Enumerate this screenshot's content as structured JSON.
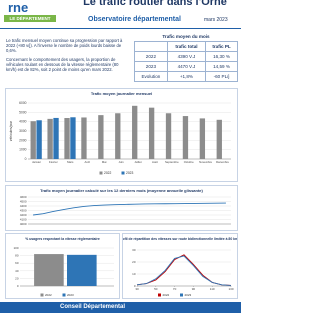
{
  "header": {
    "title": "Le trafic routier dans l'Orne",
    "logo": "rne",
    "logo_sub": "LE DÉPARTEMENT",
    "subtitle": "Observatoire départemental",
    "date": "mars 2023"
  },
  "text": [
    "Le trafic mensuel moyen continue sa progression par rapport à 2022 (+80 v/j). A l'inverse le nombre de poids lourds baisse de 0,6%.",
    "Concernant le comportement des usagers, la proportion de véhicules roulant en dessous de la vitesse réglementaire (80 km/h) est de 82%, soit 2 point de moins qu'en mars 2022."
  ],
  "table": {
    "title": "Trafic moyen du mois",
    "header": [
      "trafic total",
      "trafic PL"
    ],
    "rows": [
      [
        "2022",
        "4390 V.J",
        "16,30 %"
      ],
      [
        "2023",
        "4470 V.J",
        "14,59 %"
      ],
      [
        "Evolution",
        "+1,8%",
        "-60 PL/j"
      ]
    ]
  },
  "chart_data": [
    {
      "type": "bar",
      "title": "Trafic moyen journalier mensuel",
      "y_label": "véhicules/jour",
      "categories": [
        "Janvier",
        "Février",
        "Mars",
        "Avril",
        "Mai",
        "Juin",
        "Juillet",
        "Août",
        "Septembre",
        "Octobre",
        "Novembre",
        "Décembre"
      ],
      "series": [
        {
          "name": "2022",
          "color": "#8c8c8c",
          "values": [
            4050,
            4300,
            4390,
            4450,
            4700,
            4900,
            5700,
            5500,
            4900,
            4600,
            4350,
            4200
          ]
        },
        {
          "name": "2023",
          "color": "#2e75b6",
          "values": [
            4150,
            4400,
            4470,
            null,
            null,
            null,
            null,
            null,
            null,
            null,
            null,
            null
          ]
        }
      ],
      "ylim": [
        0,
        6000
      ],
      "yticks": [
        0,
        1000,
        2000,
        3000,
        4000,
        5000,
        6000
      ],
      "grid": true,
      "legend": "bottom"
    },
    {
      "type": "line",
      "title": "Trafic moyen journalier calculé sur les 12 derniers mois (moyenne annuelle glissante)",
      "series": [
        {
          "color": "#2e75b6",
          "values": [
            4200,
            4230,
            4280,
            4320,
            4360,
            4390,
            4410,
            4420,
            4430,
            4435,
            4440,
            4445,
            4448,
            4450,
            4452,
            4455,
            4458,
            4460,
            4462,
            4465
          ]
        }
      ],
      "ylim": [
        4000,
        4600
      ],
      "yticks": [
        4000,
        4100,
        4200,
        4300,
        4400,
        4500,
        4600
      ],
      "grid": true
    },
    {
      "type": "bar",
      "title": "% usagers respectant la vitesse réglementaire",
      "categories": [
        null
      ],
      "series": [
        {
          "name": "2022",
          "color": "#8c8c8c",
          "values": [
            84
          ]
        },
        {
          "name": "2023",
          "color": "#2e75b6",
          "values": [
            82
          ]
        }
      ],
      "ylim": [
        0,
        100
      ],
      "yticks": [
        0,
        20,
        40,
        60,
        80,
        100
      ],
      "grid": true,
      "legend": "bottom"
    },
    {
      "type": "line",
      "title": "Profil de répartition des vitesses sur route bidirectionnelle limitée à 80 km/h",
      "x": [
        30,
        40,
        50,
        60,
        70,
        80,
        90,
        100,
        110,
        120,
        130
      ],
      "series": [
        {
          "name": "2022",
          "color": "#c00000",
          "values": [
            1,
            2,
            5,
            12,
            22,
            26,
            18,
            9,
            3,
            1,
            0.5
          ]
        },
        {
          "name": "2023",
          "color": "#2e75b6",
          "values": [
            1,
            2,
            6,
            13,
            23,
            25,
            17,
            8,
            3,
            1,
            0.5
          ]
        }
      ],
      "xlim": [
        30,
        130
      ],
      "xticks": [
        30,
        50,
        70,
        90,
        110,
        130
      ],
      "ylim": [
        0,
        30
      ],
      "yticks": [
        0,
        10,
        20,
        30
      ],
      "grid": true,
      "legend": "bottom"
    }
  ],
  "footer": "Conseil Départemental"
}
